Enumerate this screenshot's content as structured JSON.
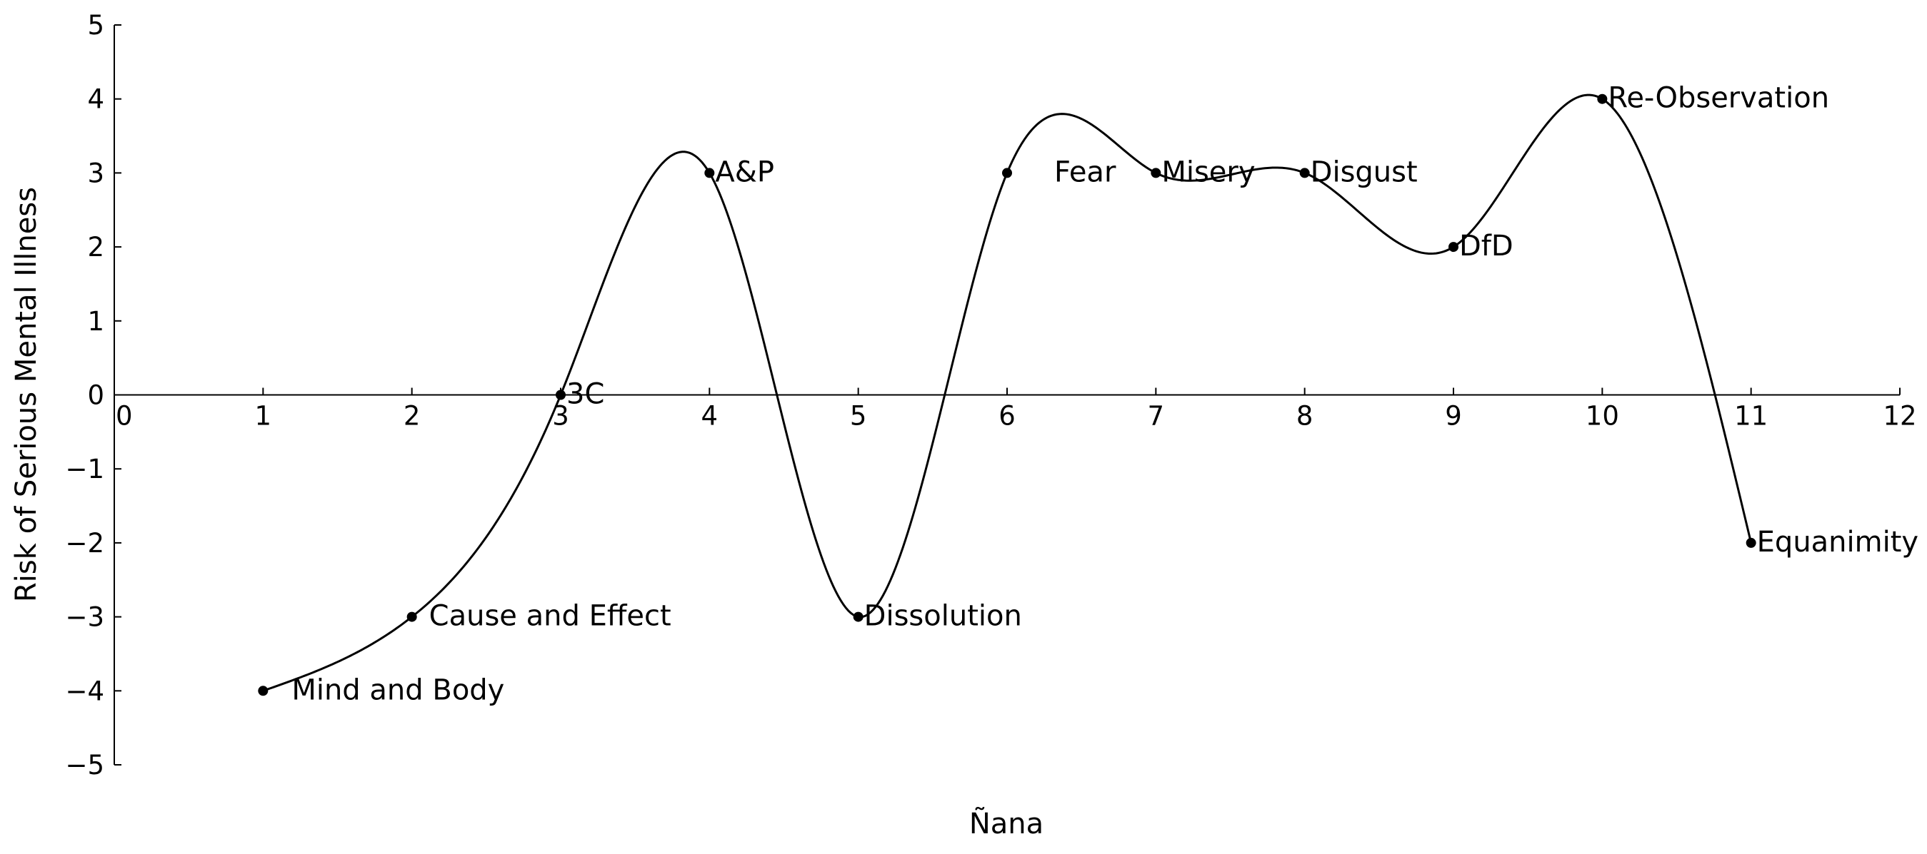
{
  "chart_data": {
    "type": "line",
    "title": "",
    "xlabel": "Ñana",
    "ylabel": "Risk of Serious Mental Illness",
    "xlim": [
      0,
      12
    ],
    "ylim": [
      -5,
      5
    ],
    "x_ticks": [
      "0",
      "1",
      "2",
      "3",
      "4",
      "5",
      "6",
      "7",
      "8",
      "9",
      "10",
      "11",
      "12"
    ],
    "y_ticks": [
      "5",
      "4",
      "3",
      "2",
      "1",
      "0",
      "−1",
      "−2",
      "−3",
      "−4",
      "−5"
    ],
    "smooth": true,
    "grid": false,
    "legend": "none",
    "line_color": "#000000",
    "points": [
      {
        "x": 1,
        "y": -4,
        "label": "Mind and Body"
      },
      {
        "x": 2,
        "y": -3,
        "label": "Cause and Effect"
      },
      {
        "x": 3,
        "y": 0,
        "label": "3C"
      },
      {
        "x": 4,
        "y": 3,
        "label": "A&P"
      },
      {
        "x": 5,
        "y": -3,
        "label": "Dissolution"
      },
      {
        "x": 6,
        "y": 3,
        "label": "Fear"
      },
      {
        "x": 7,
        "y": 3,
        "label": "Misery"
      },
      {
        "x": 8,
        "y": 3,
        "label": "Disgust"
      },
      {
        "x": 9,
        "y": 2,
        "label": "DfD"
      },
      {
        "x": 10,
        "y": 4,
        "label": "Re-Observation"
      },
      {
        "x": 11,
        "y": -2,
        "label": "Equanimity"
      }
    ]
  }
}
